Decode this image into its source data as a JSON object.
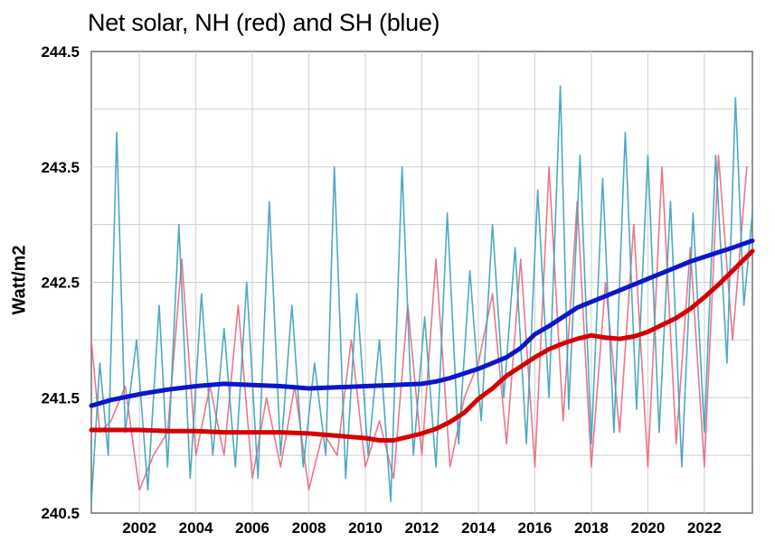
{
  "chart_data": {
    "type": "line",
    "title": "Net solar, NH (red) and SH (blue)",
    "xlabel": "",
    "ylabel": "Watt/m2",
    "xlim": [
      2000.3,
      2023.7
    ],
    "ylim": [
      240.5,
      244.5
    ],
    "grid": true,
    "legend": "none",
    "x_ticks": [
      "2002",
      "2004",
      "2006",
      "2008",
      "2010",
      "2012",
      "2014",
      "2016",
      "2018",
      "2020",
      "2022"
    ],
    "y_ticks": [
      "240.5",
      "241.5",
      "242.5",
      "243.5",
      "244.5"
    ],
    "series": [
      {
        "color": "#e8697e",
        "style": "monthly",
        "x": [
          2000.3,
          2000.6,
          2001.0,
          2001.5,
          2002.0,
          2002.5,
          2003.0,
          2003.5,
          2004.0,
          2004.5,
          2005.0,
          2005.5,
          2006.0,
          2006.5,
          2007.0,
          2007.5,
          2008.0,
          2008.5,
          2009.0,
          2009.5,
          2010.0,
          2010.5,
          2011.0,
          2011.5,
          2012.0,
          2012.5,
          2013.0,
          2013.5,
          2014.0,
          2014.5,
          2015.0,
          2015.5,
          2016.0,
          2016.5,
          2017.0,
          2017.5,
          2018.0,
          2018.5,
          2019.0,
          2019.5,
          2020.0,
          2020.5,
          2021.0,
          2021.5,
          2022.0,
          2022.5,
          2023.0,
          2023.5
        ],
        "values": [
          242.0,
          241.2,
          241.3,
          241.6,
          240.7,
          241.0,
          241.2,
          242.7,
          241.0,
          241.6,
          241.0,
          242.3,
          240.8,
          241.5,
          240.9,
          241.6,
          240.7,
          241.2,
          241.0,
          242.0,
          240.9,
          241.3,
          240.8,
          242.3,
          241.0,
          242.7,
          240.9,
          241.5,
          241.8,
          242.4,
          241.1,
          242.7,
          240.9,
          243.5,
          241.3,
          243.2,
          240.9,
          242.5,
          241.2,
          243.0,
          240.9,
          243.5,
          241.1,
          242.8,
          240.9,
          243.6,
          242.0,
          243.5
        ]
      },
      {
        "color": "#3aa0bd",
        "style": "monthly",
        "x": [
          2000.3,
          2000.6,
          2000.9,
          2001.2,
          2001.5,
          2001.9,
          2002.3,
          2002.7,
          2003.0,
          2003.4,
          2003.8,
          2004.2,
          2004.6,
          2005.0,
          2005.4,
          2005.8,
          2006.2,
          2006.6,
          2007.0,
          2007.4,
          2007.8,
          2008.2,
          2008.6,
          2008.9,
          2009.3,
          2009.7,
          2010.1,
          2010.5,
          2010.9,
          2011.3,
          2011.7,
          2012.1,
          2012.5,
          2012.9,
          2013.3,
          2013.7,
          2014.1,
          2014.5,
          2014.9,
          2015.3,
          2015.7,
          2016.1,
          2016.5,
          2016.9,
          2017.2,
          2017.6,
          2018.0,
          2018.4,
          2018.8,
          2019.2,
          2019.6,
          2020.0,
          2020.4,
          2020.8,
          2021.2,
          2021.6,
          2022.0,
          2022.4,
          2022.8,
          2023.1,
          2023.4,
          2023.7
        ],
        "values": [
          240.6,
          241.8,
          241.0,
          243.8,
          241.2,
          242.0,
          240.7,
          242.3,
          240.9,
          243.0,
          240.8,
          242.4,
          241.0,
          242.1,
          240.9,
          242.5,
          240.8,
          243.2,
          241.0,
          242.3,
          240.9,
          241.8,
          241.0,
          243.5,
          240.8,
          242.4,
          241.0,
          242.0,
          240.6,
          243.5,
          241.0,
          242.2,
          240.9,
          243.1,
          241.1,
          242.6,
          241.3,
          243.0,
          241.5,
          242.8,
          241.1,
          243.3,
          241.5,
          244.2,
          241.4,
          243.6,
          241.1,
          243.4,
          241.2,
          243.8,
          241.4,
          243.6,
          241.2,
          243.2,
          240.9,
          243.1,
          241.2,
          243.6,
          241.8,
          244.1,
          242.3,
          243.1
        ]
      },
      {
        "name": "",
        "color": "#d60000",
        "style": "smooth",
        "x": [
          2000.3,
          2001,
          2002,
          2003,
          2004,
          2005,
          2006,
          2007,
          2008,
          2009,
          2010,
          2010.5,
          2011,
          2011.5,
          2012,
          2012.5,
          2013,
          2013.5,
          2014,
          2014.5,
          2015,
          2015.5,
          2016,
          2016.5,
          2017,
          2017.5,
          2018,
          2018.5,
          2019,
          2019.5,
          2020,
          2020.5,
          2021,
          2021.5,
          2022,
          2022.5,
          2023,
          2023.7
        ],
        "values": [
          241.22,
          241.22,
          241.22,
          241.21,
          241.21,
          241.2,
          241.2,
          241.2,
          241.19,
          241.17,
          241.15,
          241.13,
          241.13,
          241.16,
          241.19,
          241.23,
          241.29,
          241.37,
          241.49,
          241.58,
          241.69,
          241.77,
          241.85,
          241.92,
          241.97,
          242.01,
          242.04,
          242.02,
          242.01,
          242.03,
          242.07,
          242.13,
          242.19,
          242.27,
          242.37,
          242.48,
          242.6,
          242.77
        ]
      },
      {
        "name": "",
        "color": "#0a17c9",
        "style": "smooth",
        "x": [
          2000.3,
          2001,
          2002,
          2003,
          2004,
          2005,
          2006,
          2007,
          2008,
          2009,
          2010,
          2011,
          2012,
          2012.5,
          2013,
          2013.5,
          2014,
          2014.5,
          2015,
          2015.5,
          2016,
          2016.5,
          2017,
          2017.5,
          2018,
          2018.5,
          2019,
          2019.5,
          2020,
          2020.5,
          2021,
          2021.5,
          2022,
          2022.5,
          2023,
          2023.7
        ],
        "values": [
          241.43,
          241.48,
          241.53,
          241.57,
          241.6,
          241.62,
          241.61,
          241.6,
          241.58,
          241.59,
          241.6,
          241.61,
          241.62,
          241.64,
          241.67,
          241.71,
          241.75,
          241.8,
          241.85,
          241.93,
          242.05,
          242.12,
          242.2,
          242.28,
          242.33,
          242.38,
          242.43,
          242.48,
          242.53,
          242.58,
          242.63,
          242.68,
          242.72,
          242.76,
          242.8,
          242.86
        ]
      }
    ]
  }
}
